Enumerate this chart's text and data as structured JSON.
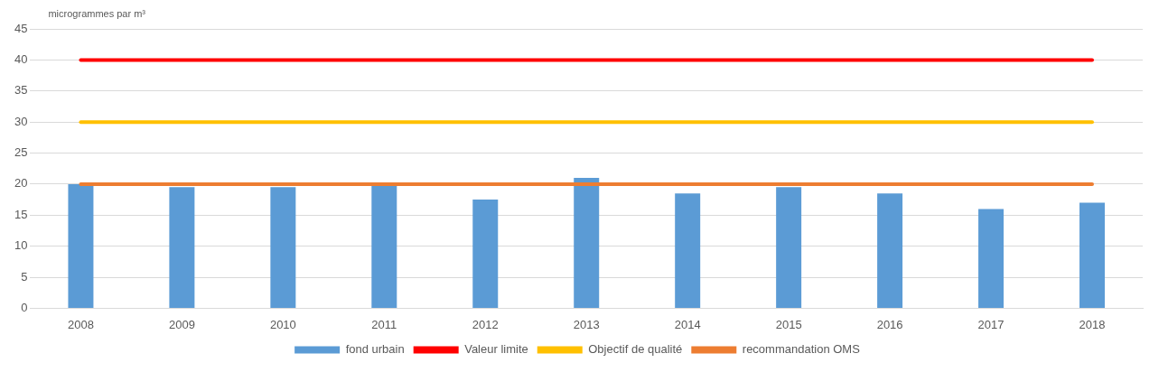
{
  "chart_data": {
    "type": "bar",
    "ylabel": "microgrammes par m³",
    "categories": [
      "2008",
      "2009",
      "2010",
      "2011",
      "2012",
      "2013",
      "2014",
      "2015",
      "2016",
      "2017",
      "2018"
    ],
    "series": [
      {
        "name": "fond urbain",
        "color": "#5b9bd5",
        "values": [
          20,
          19.5,
          19.5,
          20,
          17.5,
          21,
          18.5,
          19.5,
          18.5,
          16,
          17
        ]
      },
      {
        "name": "Valeur limite",
        "type": "line",
        "color": "#ff0000",
        "values": [
          40,
          40,
          40,
          40,
          40,
          40,
          40,
          40,
          40,
          40,
          40
        ]
      },
      {
        "name": "Objectif de qualité",
        "type": "line",
        "color": "#ffc000",
        "values": [
          30,
          30,
          30,
          30,
          30,
          30,
          30,
          30,
          30,
          30,
          30
        ]
      },
      {
        "name": "recommandation OMS",
        "type": "line",
        "color": "#ed7d31",
        "values": [
          20,
          20,
          20,
          20,
          20,
          20,
          20,
          20,
          20,
          20,
          20
        ]
      }
    ],
    "ylim": [
      0,
      45
    ],
    "yticks": [
      0,
      5,
      10,
      15,
      20,
      25,
      30,
      35,
      40,
      45
    ],
    "grid": "y",
    "legend": "bottom",
    "marker": "none"
  }
}
